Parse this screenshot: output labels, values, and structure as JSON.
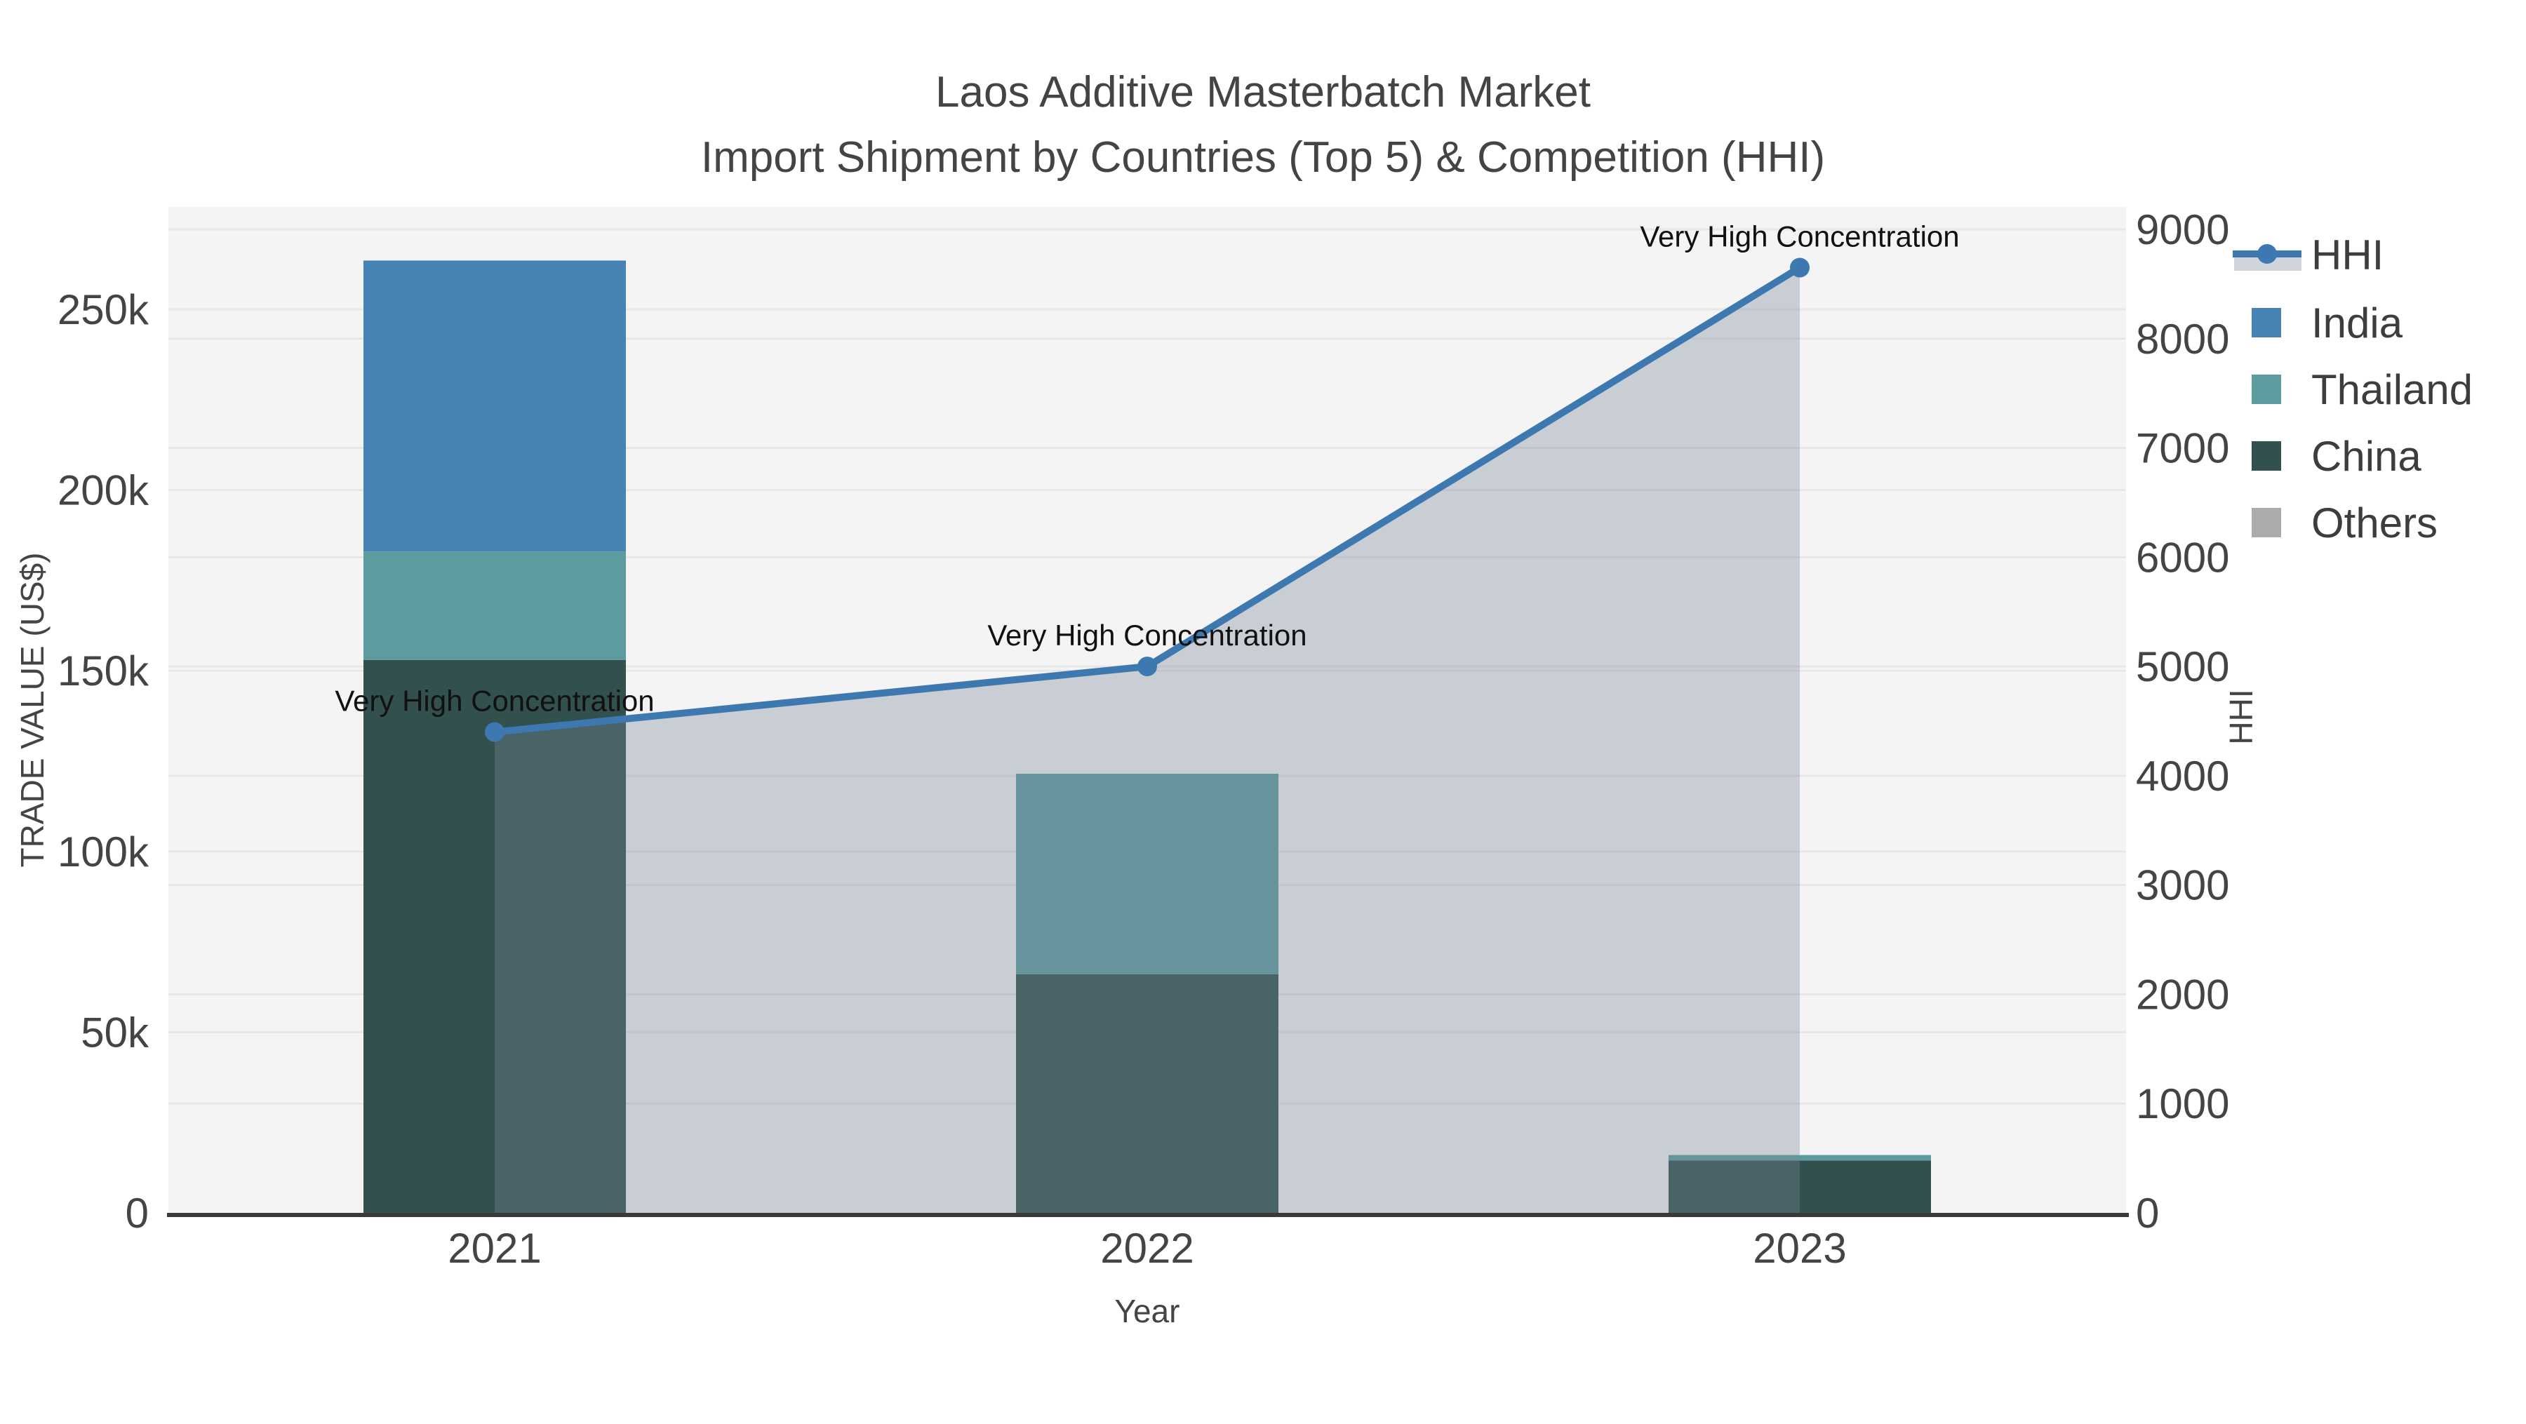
{
  "title": {
    "line1": "Laos Additive Masterbatch Market",
    "line2": "Import Shipment by Countries (Top 5) & Competition (HHI)"
  },
  "colors": {
    "figure_bg": "#ffffff",
    "plot_bg": "#f4f4f4",
    "grid": "#e7e7e7",
    "axis_line": "#3a3a3a",
    "text": "#444444",
    "annotation_text": "#111111",
    "hhi_line": "#3e78b0",
    "hhi_marker": "#3e78b0",
    "hhi_area": "rgba(119,136,153,0.35)",
    "india": "#4682b4",
    "thailand": "#5c9c9e",
    "china": "#31504e",
    "others": "#ababab"
  },
  "axes": {
    "x": {
      "title": "Year",
      "tick_labels": [
        "2021",
        "2022",
        "2023"
      ]
    },
    "y_left": {
      "title": "TRADE VALUE (US$)",
      "ticks": [
        {
          "label": "0",
          "value": 0
        },
        {
          "label": "50k",
          "value": 50000
        },
        {
          "label": "100k",
          "value": 100000
        },
        {
          "label": "150k",
          "value": 150000
        },
        {
          "label": "200k",
          "value": 200000
        },
        {
          "label": "250k",
          "value": 250000
        }
      ]
    },
    "y_right": {
      "title": "HHI",
      "ticks": [
        {
          "label": "0",
          "value": 0
        },
        {
          "label": "1000",
          "value": 1000
        },
        {
          "label": "2000",
          "value": 2000
        },
        {
          "label": "3000",
          "value": 3000
        },
        {
          "label": "4000",
          "value": 4000
        },
        {
          "label": "5000",
          "value": 5000
        },
        {
          "label": "6000",
          "value": 6000
        },
        {
          "label": "7000",
          "value": 7000
        },
        {
          "label": "8000",
          "value": 8000
        },
        {
          "label": "9000",
          "value": 9000
        }
      ]
    }
  },
  "legend": {
    "items": [
      {
        "label": "HHI",
        "type": "line",
        "color": "#3e78b0"
      },
      {
        "label": "India",
        "type": "square",
        "color": "#4682b4"
      },
      {
        "label": "Thailand",
        "type": "square",
        "color": "#5c9c9e"
      },
      {
        "label": "China",
        "type": "square",
        "color": "#31504e"
      },
      {
        "label": "Others",
        "type": "square",
        "color": "#ababab"
      }
    ]
  },
  "chart_data": {
    "type": "combo_stacked_bar_line_area",
    "title": "Laos Additive Masterbatch Market — Import Shipment by Countries (Top 5) & Competition (HHI)",
    "categories": [
      "2021",
      "2022",
      "2023"
    ],
    "xlabel": "Year",
    "ylabel_left": "TRADE VALUE (US$)",
    "ylabel_right": "HHI",
    "y_left_range": [
      0,
      277000
    ],
    "y_right_range": [
      0,
      9200
    ],
    "grid": true,
    "legend_position": "right",
    "bar_series": [
      {
        "name": "China",
        "color": "#31504e",
        "stack_order": 1,
        "values": [
          153000,
          66000,
          14500
        ]
      },
      {
        "name": "Thailand",
        "color": "#5c9c9e",
        "stack_order": 2,
        "values": [
          30000,
          55500,
          1500
        ]
      },
      {
        "name": "India",
        "color": "#4682b4",
        "stack_order": 3,
        "values": [
          80500,
          0,
          0
        ]
      },
      {
        "name": "Others",
        "color": "#ababab",
        "stack_order": 4,
        "values": [
          0,
          0,
          0
        ]
      }
    ],
    "line_series": {
      "name": "HHI",
      "axis": "right",
      "color": "#3e78b0",
      "area_fill": "rgba(119,136,153,0.35)",
      "values": [
        4400,
        5000,
        8650
      ],
      "annotations": [
        "Very High Concentration",
        "Very High Concentration",
        "Very High Concentration"
      ]
    }
  }
}
